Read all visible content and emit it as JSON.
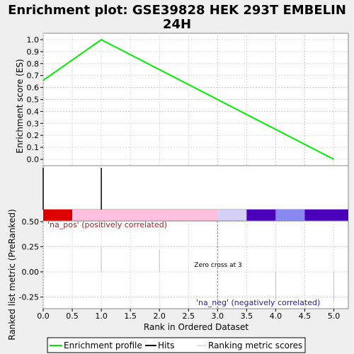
{
  "chart_data": {
    "type": "line",
    "title": "Enrichment plot: GSE39828 HEK 293T EMBELIN 24H",
    "title_lines": [
      "Enrichment plot: GSE39828 HEK 293T EMBELIN",
      "24H"
    ],
    "xlabel": "Rank in Ordered Dataset",
    "es_panel": {
      "ylabel": "Enrichment score (ES)",
      "ylim": [
        -0.05,
        1.05
      ],
      "yticks": [
        0.0,
        0.1,
        0.2,
        0.3,
        0.4,
        0.5,
        0.6,
        0.7,
        0.8,
        0.9,
        1.0
      ],
      "ytick_labels": [
        "0.0",
        "0.1",
        "0.2",
        "0.3",
        "0.4",
        "0.5",
        "0.6",
        "0.7",
        "0.8",
        "0.9",
        "1.0"
      ],
      "x": [
        0,
        1,
        5
      ],
      "y": [
        0.66,
        1.0,
        0.0
      ],
      "series_color": "#00ee00"
    },
    "hits_panel": {
      "hits": [
        0,
        1
      ],
      "color_bar": [
        {
          "from": 0.0,
          "to": 0.5,
          "color": "#dd0000"
        },
        {
          "from": 0.5,
          "to": 3.0,
          "color": "#ffc0e0"
        },
        {
          "from": 3.0,
          "to": 3.5,
          "color": "#d4d0f8"
        },
        {
          "from": 3.5,
          "to": 4.0,
          "color": "#4a00b8"
        },
        {
          "from": 4.0,
          "to": 4.5,
          "color": "#8888f0"
        },
        {
          "from": 4.5,
          "to": 5.25,
          "color": "#4a00b8"
        }
      ]
    },
    "rank_panel": {
      "ylabel": "Ranked list metric (PreRanked)",
      "ylim": [
        -0.32,
        0.5
      ],
      "yticks": [
        0.5,
        0.25,
        0.0,
        -0.25
      ],
      "ytick_labels": [
        "0.50",
        "0.25",
        "0.00",
        "-0.25"
      ],
      "bars": [
        {
          "x": 1,
          "value": 0.25
        },
        {
          "x": 2,
          "value": 0.22
        },
        {
          "x": 4,
          "value": -0.3
        },
        {
          "x": 5,
          "value": -0.3
        }
      ],
      "pos_label": "'na_pos' (positively correlated)",
      "neg_label": "'na_neg' (negatively correlated)",
      "zero_cross_label": "Zero cross at 3",
      "zero_cross_x": 3
    },
    "xlim": [
      0,
      5.25
    ],
    "xticks": [
      0,
      0.5,
      1,
      1.5,
      2,
      2.5,
      3,
      3.5,
      4,
      4.5,
      5
    ],
    "xtick_labels": [
      "0.0",
      "0.5",
      "1.0",
      "1.5",
      "2.0",
      "2.5",
      "3.0",
      "3.5",
      "4.0",
      "4.5",
      "5.0"
    ],
    "legend": {
      "items": [
        {
          "label": "Enrichment profile",
          "color": "#00ee00"
        },
        {
          "label": "Hits",
          "color": "#000000"
        },
        {
          "label": "Ranking metric scores",
          "color": "#c0c0c0"
        }
      ]
    },
    "colors": {
      "pos_label": "#aa2222",
      "neg_label": "#2222aa",
      "grid": "#d8d8d8",
      "background": "#ffffff",
      "page": "#efefef"
    }
  }
}
